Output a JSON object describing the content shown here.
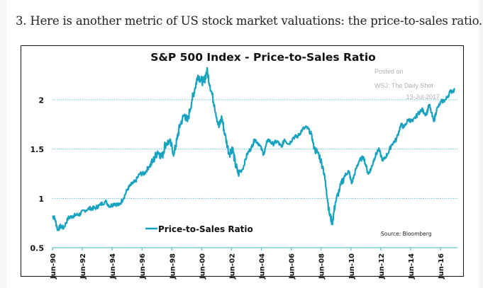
{
  "intro_text": "3. Here is another metric of US stock market valuations: the price-to-sales ratio.",
  "colors": {
    "series": "#17a2bf",
    "grid": "#5fc0d3",
    "axis": "#5fc0d3",
    "text": "#111111",
    "watermark": "#b0b0b0"
  },
  "chart_data": {
    "type": "line",
    "title": "S&P 500 Index - Price-to-Sales Ratio",
    "xlabel": "",
    "ylabel": "",
    "ylim": [
      0.5,
      2.35
    ],
    "yticks": [
      0.5,
      1,
      1.5,
      2
    ],
    "ytick_labels": [
      "0.5",
      "1",
      "1.5",
      "2"
    ],
    "xlim": [
      1990.4,
      2017.6
    ],
    "xticks": [
      1990.45,
      1992.45,
      1994.45,
      1996.45,
      1998.45,
      2000.45,
      2002.45,
      2004.45,
      2006.45,
      2008.45,
      2010.45,
      2012.45,
      2014.45,
      2016.45
    ],
    "xtick_labels": [
      "Jun-90",
      "Jun-92",
      "Jun-94",
      "Jun-96",
      "Jun-98",
      "Jun-00",
      "Jun-02",
      "Jun-04",
      "Jun-06",
      "Jun-08",
      "Jun-10",
      "Jun-12",
      "Jun-14",
      "Jun-16"
    ],
    "grid": true,
    "legend": {
      "position": "bottom-left",
      "entries": [
        "Price-to-Sales Ratio"
      ]
    },
    "annotations": {
      "posted_on": "Posted on",
      "publisher": "WSJ: The Daily Shot",
      "date": "13-Jul-2017",
      "source": "Source: Bloomberg"
    },
    "series": [
      {
        "name": "Price-to-Sales Ratio",
        "x": [
          1990.45,
          1990.6,
          1990.8,
          1991.0,
          1991.2,
          1991.5,
          1991.8,
          1992.0,
          1992.3,
          1992.6,
          1993.0,
          1993.3,
          1993.6,
          1994.0,
          1994.3,
          1994.6,
          1994.9,
          1995.2,
          1995.5,
          1995.8,
          1996.0,
          1996.3,
          1996.6,
          1996.9,
          1997.2,
          1997.5,
          1997.8,
          1998.0,
          1998.3,
          1998.6,
          1998.8,
          1999.0,
          1999.3,
          1999.5,
          1999.8,
          2000.0,
          2000.2,
          2000.4,
          2000.6,
          2000.8,
          2001.0,
          2001.3,
          2001.6,
          2001.8,
          2002.0,
          2002.3,
          2002.5,
          2002.7,
          2002.9,
          2003.2,
          2003.5,
          2003.8,
          2004.0,
          2004.3,
          2004.6,
          2004.9,
          2005.2,
          2005.5,
          2005.8,
          2006.0,
          2006.3,
          2006.6,
          2006.9,
          2007.2,
          2007.5,
          2007.8,
          2008.0,
          2008.3,
          2008.6,
          2008.8,
          2009.0,
          2009.2,
          2009.4,
          2009.7,
          2010.0,
          2010.3,
          2010.5,
          2010.8,
          2011.0,
          2011.3,
          2011.6,
          2011.8,
          2012.0,
          2012.3,
          2012.6,
          2012.9,
          2013.2,
          2013.5,
          2013.8,
          2014.0,
          2014.3,
          2014.6,
          2014.9,
          2015.2,
          2015.5,
          2015.7,
          2016.0,
          2016.2,
          2016.5,
          2016.8,
          2017.1,
          2017.4
        ],
        "values": [
          0.82,
          0.8,
          0.68,
          0.72,
          0.7,
          0.8,
          0.82,
          0.83,
          0.84,
          0.88,
          0.9,
          0.9,
          0.93,
          0.97,
          0.92,
          0.95,
          0.93,
          1.0,
          1.1,
          1.15,
          1.17,
          1.25,
          1.25,
          1.32,
          1.38,
          1.48,
          1.42,
          1.55,
          1.58,
          1.45,
          1.6,
          1.75,
          1.85,
          1.78,
          2.0,
          2.12,
          2.25,
          2.2,
          2.18,
          2.3,
          2.15,
          1.95,
          1.72,
          1.82,
          1.65,
          1.45,
          1.52,
          1.35,
          1.25,
          1.3,
          1.45,
          1.52,
          1.6,
          1.55,
          1.45,
          1.6,
          1.55,
          1.58,
          1.52,
          1.6,
          1.55,
          1.62,
          1.63,
          1.7,
          1.72,
          1.65,
          1.5,
          1.45,
          1.3,
          1.1,
          0.85,
          0.75,
          0.95,
          1.1,
          1.22,
          1.28,
          1.15,
          1.3,
          1.38,
          1.42,
          1.25,
          1.3,
          1.4,
          1.5,
          1.38,
          1.45,
          1.55,
          1.6,
          1.75,
          1.72,
          1.8,
          1.78,
          1.85,
          1.9,
          1.85,
          1.95,
          1.78,
          1.9,
          1.98,
          2.0,
          2.08,
          2.1
        ]
      }
    ]
  }
}
